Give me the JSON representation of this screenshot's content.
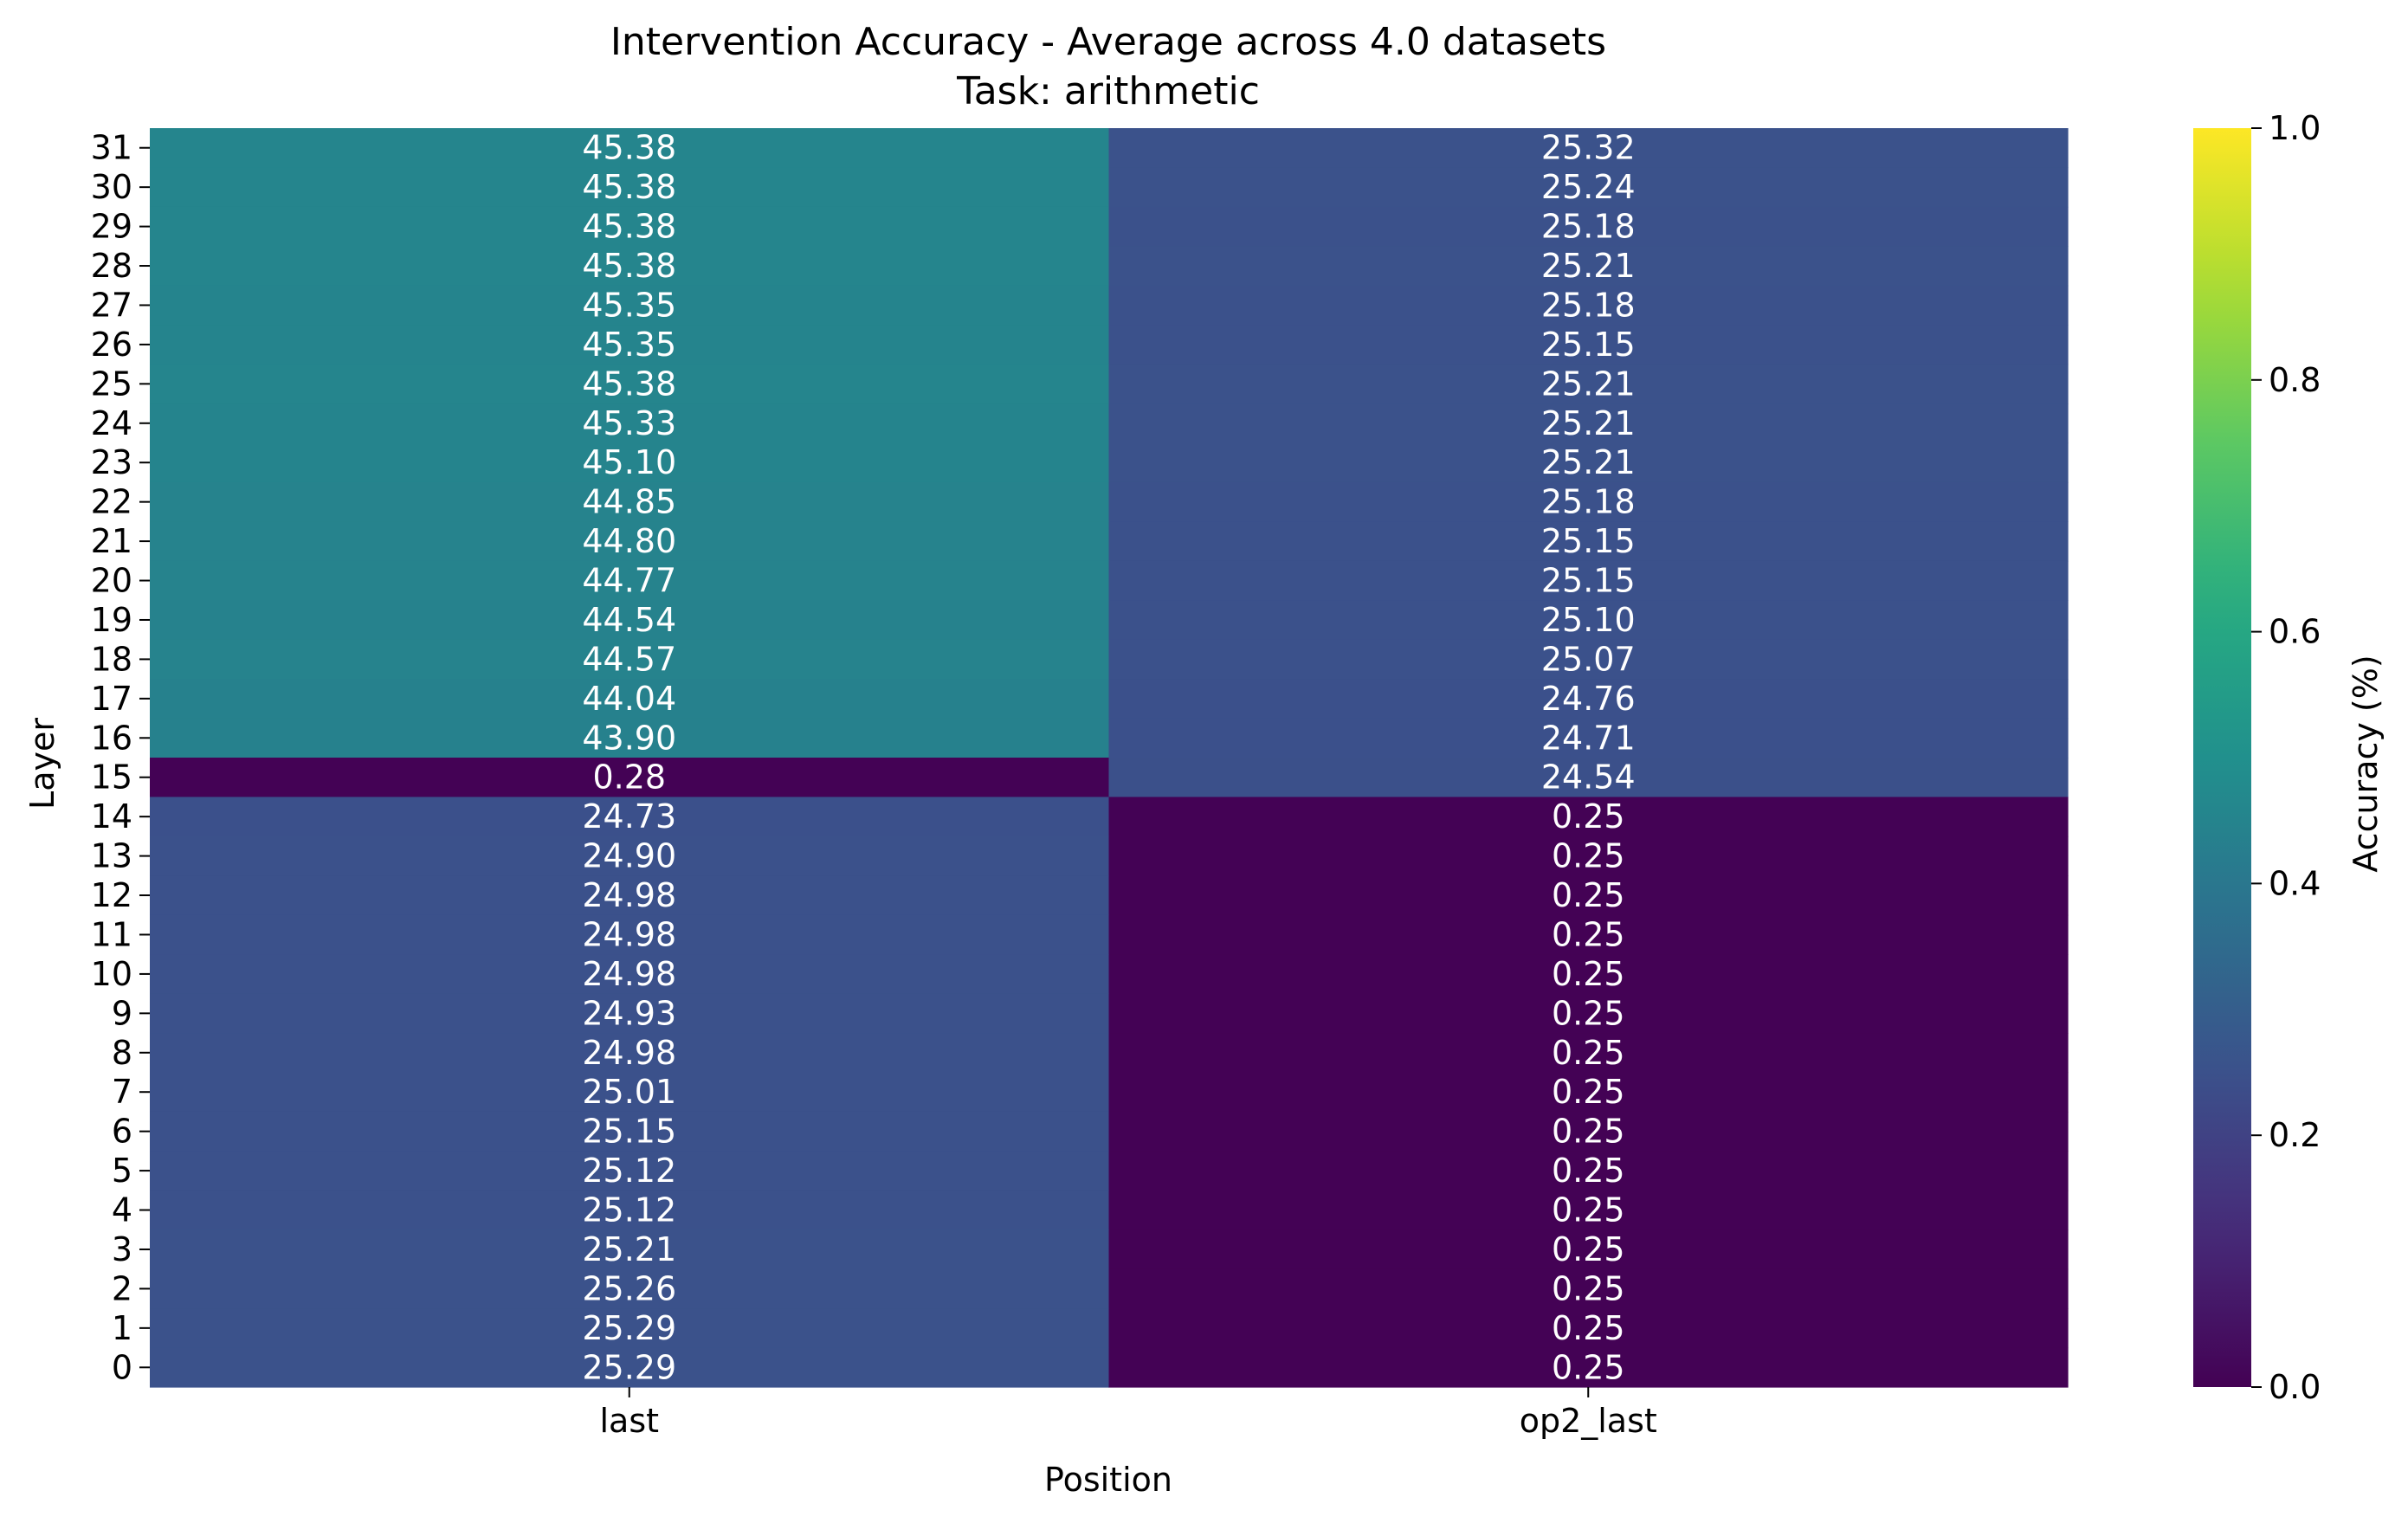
{
  "chart_data": {
    "type": "heatmap",
    "title": "Intervention Accuracy - Average across 4.0 datasets",
    "subtitle": "Task: arithmetic",
    "xlabel": "Position",
    "ylabel": "Layer",
    "x_categories": [
      "last",
      "op2_last"
    ],
    "y_categories": [
      31,
      30,
      29,
      28,
      27,
      26,
      25,
      24,
      23,
      22,
      21,
      20,
      19,
      18,
      17,
      16,
      15,
      14,
      13,
      12,
      11,
      10,
      9,
      8,
      7,
      6,
      5,
      4,
      3,
      2,
      1,
      0
    ],
    "values": [
      [
        45.38,
        25.32
      ],
      [
        45.38,
        25.24
      ],
      [
        45.38,
        25.18
      ],
      [
        45.38,
        25.21
      ],
      [
        45.35,
        25.18
      ],
      [
        45.35,
        25.15
      ],
      [
        45.38,
        25.21
      ],
      [
        45.33,
        25.21
      ],
      [
        45.1,
        25.21
      ],
      [
        44.85,
        25.18
      ],
      [
        44.8,
        25.15
      ],
      [
        44.77,
        25.15
      ],
      [
        44.54,
        25.1
      ],
      [
        44.57,
        25.07
      ],
      [
        44.04,
        24.76
      ],
      [
        43.9,
        24.71
      ],
      [
        0.28,
        24.54
      ],
      [
        24.73,
        0.25
      ],
      [
        24.9,
        0.25
      ],
      [
        24.98,
        0.25
      ],
      [
        24.98,
        0.25
      ],
      [
        24.98,
        0.25
      ],
      [
        24.93,
        0.25
      ],
      [
        24.98,
        0.25
      ],
      [
        25.01,
        0.25
      ],
      [
        25.15,
        0.25
      ],
      [
        25.12,
        0.25
      ],
      [
        25.12,
        0.25
      ],
      [
        25.21,
        0.25
      ],
      [
        25.26,
        0.25
      ],
      [
        25.29,
        0.25
      ],
      [
        25.29,
        0.25
      ]
    ],
    "colormap": "viridis",
    "colorbar": {
      "label": "Accuracy (%)",
      "range": [
        0.0,
        1.0
      ],
      "ticks": [
        "0.0",
        "0.2",
        "0.4",
        "0.6",
        "0.8",
        "1.0"
      ]
    },
    "legend_position": "right"
  }
}
